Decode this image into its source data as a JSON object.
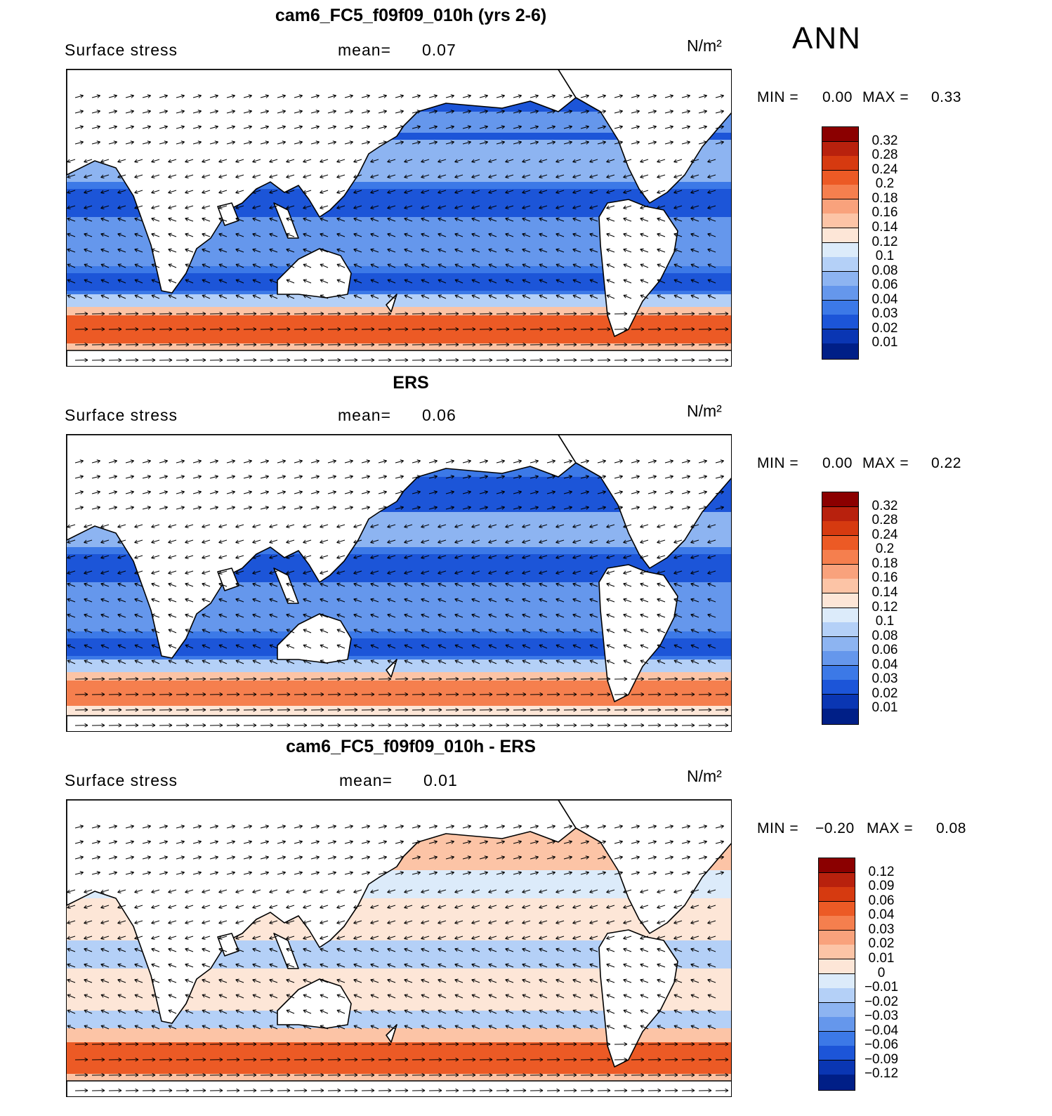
{
  "season": "ANN",
  "panels": [
    {
      "title": "cam6_FC5_f09f09_010h (yrs 2-6)",
      "variable": "Surface stress",
      "mean_label": "mean=",
      "mean_value": "0.07",
      "units": "N/m²",
      "min_label": "MIN =",
      "min_value": "0.00",
      "max_label": "MAX =",
      "max_value": "0.33",
      "levels": [
        "0.32",
        "0.28",
        "0.24",
        "0.2",
        "0.18",
        "0.16",
        "0.14",
        "0.12",
        "0.1",
        "0.08",
        "0.06",
        "0.04",
        "0.03",
        "0.02",
        "0.01"
      ],
      "colors": [
        "#8b0000",
        "#b8210d",
        "#d63a10",
        "#ec5a25",
        "#f57f4e",
        "#f9a27c",
        "#fcc4a6",
        "#fde6d7",
        "#dcebfa",
        "#b4d0f7",
        "#8db4f1",
        "#6597ec",
        "#3c79e7",
        "#1c55d8",
        "#0a36b3",
        "#001f87"
      ]
    },
    {
      "title": "ERS",
      "variable": "Surface stress",
      "mean_label": "mean=",
      "mean_value": "0.06",
      "units": "N/m²",
      "min_label": "MIN =",
      "min_value": "0.00",
      "max_label": "MAX =",
      "max_value": "0.22",
      "levels": [
        "0.32",
        "0.28",
        "0.24",
        "0.2",
        "0.18",
        "0.16",
        "0.14",
        "0.12",
        "0.1",
        "0.08",
        "0.06",
        "0.04",
        "0.03",
        "0.02",
        "0.01"
      ],
      "colors": [
        "#8b0000",
        "#b8210d",
        "#d63a10",
        "#ec5a25",
        "#f57f4e",
        "#f9a27c",
        "#fcc4a6",
        "#fde6d7",
        "#dcebfa",
        "#b4d0f7",
        "#8db4f1",
        "#6597ec",
        "#3c79e7",
        "#1c55d8",
        "#0a36b3",
        "#001f87"
      ]
    },
    {
      "title": "cam6_FC5_f09f09_010h - ERS",
      "variable": "Surface stress",
      "mean_label": "mean=",
      "mean_value": "0.01",
      "units": "N/m²",
      "min_label": "MIN =",
      "min_value": "−0.20",
      "max_label": "MAX =",
      "max_value": "0.08",
      "levels": [
        "0.12",
        "0.09",
        "0.06",
        "0.04",
        "0.03",
        "0.02",
        "0.01",
        "0",
        "−0.01",
        "−0.02",
        "−0.03",
        "−0.04",
        "−0.06",
        "−0.09",
        "−0.12"
      ],
      "colors": [
        "#8b0000",
        "#b8210d",
        "#d63a10",
        "#ec5a25",
        "#f57f4e",
        "#f9a27c",
        "#fcc4a6",
        "#fde6d7",
        "#dcebfa",
        "#b4d0f7",
        "#8db4f1",
        "#6597ec",
        "#3c79e7",
        "#1c55d8",
        "#0a36b3",
        "#001f87"
      ]
    }
  ]
}
